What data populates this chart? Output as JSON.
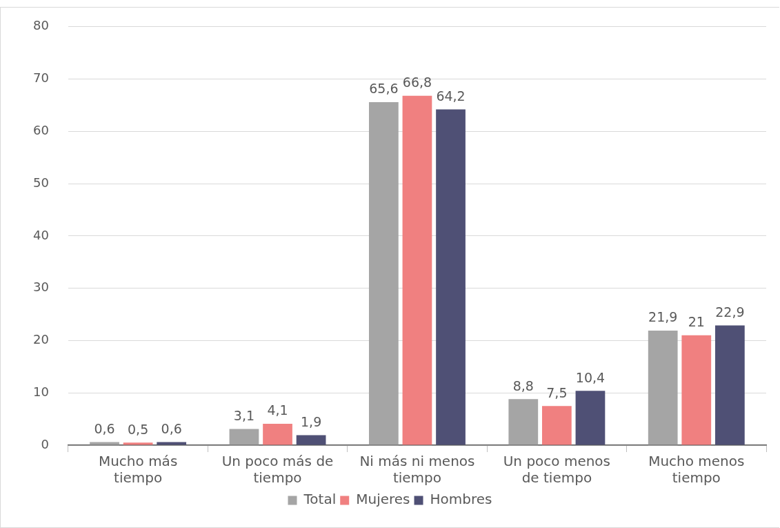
{
  "chart_data": {
    "type": "bar",
    "categories": [
      "Mucho más tiempo",
      "Un poco más de tiempo",
      "Ni más ni menos tiempo",
      "Un poco menos de tiempo",
      "Mucho menos tiempo"
    ],
    "series": [
      {
        "name": "Total",
        "color": "#a5a5a5",
        "values": [
          0.6,
          3.1,
          65.6,
          8.8,
          21.9
        ],
        "value_labels": [
          "0,6",
          "3,1",
          "65,6",
          "8,8",
          "21,9"
        ]
      },
      {
        "name": "Mujeres",
        "color": "#f08080",
        "values": [
          0.5,
          4.1,
          66.8,
          7.5,
          21
        ],
        "value_labels": [
          "0,5",
          "4,1",
          "66,8",
          "7,5",
          "21"
        ]
      },
      {
        "name": "Hombres",
        "color": "#4f5075",
        "values": [
          0.6,
          1.9,
          64.2,
          10.4,
          22.9
        ],
        "value_labels": [
          "0,6",
          "1,9",
          "64,2",
          "10,4",
          "22,9"
        ]
      }
    ],
    "ylim": [
      0,
      80
    ],
    "yticks": [
      0,
      10,
      20,
      30,
      40,
      50,
      60,
      70,
      80
    ],
    "grid": "y",
    "legend": "bottom"
  }
}
